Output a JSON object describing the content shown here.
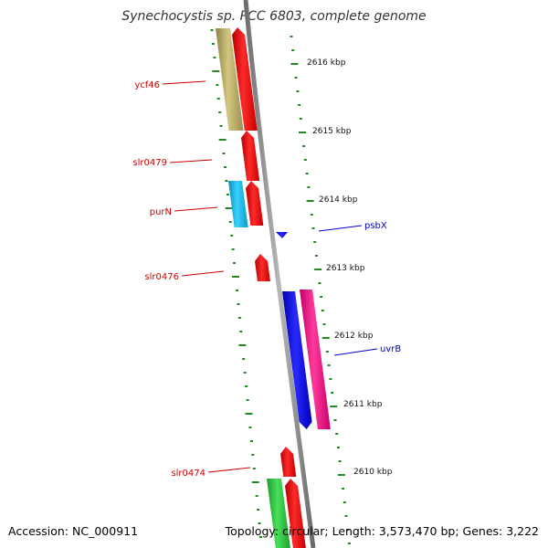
{
  "title": "Synechocystis sp. PCC 6803, complete genome",
  "footer": {
    "accession": "Accession: NC_000911",
    "summary": "Topology: circular; Length: 3,573,470 bp; Genes: 3,222"
  },
  "colors": {
    "background": "#ffffff",
    "backbone": "#8c8c8c",
    "tick": "#1f8a1f",
    "label_left": "#cc0000",
    "label_right": "#0000cc"
  },
  "scale_labels": [
    {
      "text": "2616 kbp"
    },
    {
      "text": "2615 kbp"
    },
    {
      "text": "2614 kbp"
    },
    {
      "text": "2613 kbp"
    },
    {
      "text": "2612 kbp"
    },
    {
      "text": "2611 kbp"
    },
    {
      "text": "2610 kbp"
    }
  ],
  "gene_labels": [
    {
      "text": "ycf46",
      "side": "left"
    },
    {
      "text": "slr0479",
      "side": "left"
    },
    {
      "text": "purN",
      "side": "left"
    },
    {
      "text": "slr0476",
      "side": "left"
    },
    {
      "text": "slr0474",
      "side": "left"
    },
    {
      "text": "psbX",
      "side": "right"
    },
    {
      "text": "uvrB",
      "side": "right"
    }
  ],
  "gene_colors": {
    "red": "#ff1a1a",
    "khaki": "#c0b46a",
    "cyan": "#19c3f0",
    "blue": "#1a1aee",
    "pink": "#ff1a8c",
    "green": "#2ecc40"
  }
}
